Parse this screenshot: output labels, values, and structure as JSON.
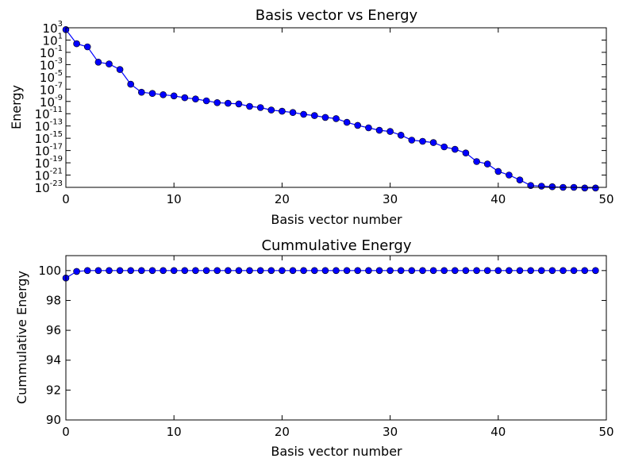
{
  "chart_data": [
    {
      "type": "line",
      "title": "Basis vector vs Energy",
      "xlabel": "Basis vector number",
      "ylabel": "Energy",
      "yscale": "log",
      "xlim": [
        0,
        50
      ],
      "ylim_exponent": [
        -23,
        3
      ],
      "xticks": [
        0,
        10,
        20,
        30,
        40,
        50
      ],
      "yticks_exponent": [
        3,
        1,
        -1,
        -3,
        -5,
        -7,
        -9,
        -11,
        -13,
        -15,
        -17,
        -19,
        -21,
        -23
      ],
      "tick_base": "10",
      "marker": "circle",
      "color": "#0000ff",
      "grid": false,
      "x": [
        0,
        1,
        2,
        3,
        4,
        5,
        6,
        7,
        8,
        9,
        10,
        11,
        12,
        13,
        14,
        15,
        16,
        17,
        18,
        19,
        20,
        21,
        22,
        23,
        24,
        25,
        26,
        27,
        28,
        29,
        30,
        31,
        32,
        33,
        34,
        35,
        36,
        37,
        38,
        39,
        40,
        41,
        42,
        43,
        44,
        45,
        46,
        47,
        48,
        49
      ],
      "y_exponent": [
        2.7,
        0.4,
        -0.1,
        -2.6,
        -2.9,
        -3.8,
        -6.2,
        -7.5,
        -7.7,
        -7.9,
        -8.1,
        -8.4,
        -8.6,
        -8.9,
        -9.2,
        -9.3,
        -9.4,
        -9.8,
        -10.0,
        -10.4,
        -10.6,
        -10.8,
        -11.1,
        -11.3,
        -11.6,
        -11.8,
        -12.4,
        -12.9,
        -13.3,
        -13.7,
        -13.9,
        -14.5,
        -15.3,
        -15.5,
        -15.7,
        -16.4,
        -16.8,
        -17.4,
        -18.8,
        -19.2,
        -20.4,
        -21.0,
        -21.8,
        -22.7,
        -22.8,
        -22.9,
        -23.0,
        -23.0,
        -23.1,
        -23.1
      ]
    },
    {
      "type": "line",
      "title": "Cummulative Energy",
      "xlabel": "Basis vector number",
      "ylabel": "Cummulative Energy",
      "xlim": [
        0,
        50
      ],
      "ylim": [
        90,
        101
      ],
      "xticks": [
        0,
        10,
        20,
        30,
        40,
        50
      ],
      "yticks": [
        90,
        92,
        94,
        96,
        98,
        100
      ],
      "marker": "circle",
      "color": "#0000ff",
      "grid": false,
      "x": [
        0,
        1,
        2,
        3,
        4,
        5,
        6,
        7,
        8,
        9,
        10,
        11,
        12,
        13,
        14,
        15,
        16,
        17,
        18,
        19,
        20,
        21,
        22,
        23,
        24,
        25,
        26,
        27,
        28,
        29,
        30,
        31,
        32,
        33,
        34,
        35,
        36,
        37,
        38,
        39,
        40,
        41,
        42,
        43,
        44,
        45,
        46,
        47,
        48,
        49
      ],
      "y": [
        99.5,
        99.94,
        100,
        100,
        100,
        100,
        100,
        100,
        100,
        100,
        100,
        100,
        100,
        100,
        100,
        100,
        100,
        100,
        100,
        100,
        100,
        100,
        100,
        100,
        100,
        100,
        100,
        100,
        100,
        100,
        100,
        100,
        100,
        100,
        100,
        100,
        100,
        100,
        100,
        100,
        100,
        100,
        100,
        100,
        100,
        100,
        100,
        100,
        100,
        100
      ]
    }
  ]
}
